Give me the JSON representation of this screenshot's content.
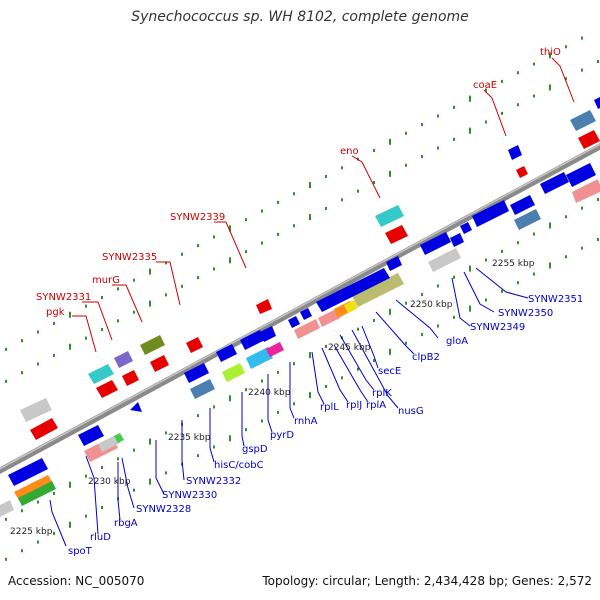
{
  "title": "Synechococcus sp. WH 8102, complete genome",
  "footer": {
    "accession": "Accession: NC_005070",
    "stats": "Topology: circular; Length: 2,434,428 bp; Genes: 2,572"
  },
  "colors": {
    "backbone": "#8c8c8c",
    "tick": "#2f8f2f",
    "top_label": "#cc0000",
    "bottom_label": "#0000cc",
    "scale_text": "#222222"
  },
  "scale_labels": [
    "2225 kbp",
    "2230 kbp",
    "2235 kbp",
    "2240 kbp",
    "2245 kbp",
    "2250 kbp",
    "2255 kbp"
  ],
  "top_labels": [
    "SYNW2331",
    "pgk",
    "murG",
    "SYNW2335",
    "SYNW2339",
    "eno",
    "coaE",
    "thiO"
  ],
  "bottom_labels": [
    "spoT",
    "rluD",
    "rbgA",
    "SYNW2328",
    "SYNW2330",
    "SYNW2332",
    "hisC/cobC",
    "gspD",
    "pyrD",
    "rnhA",
    "rplL",
    "rplJ",
    "rplA",
    "rplK",
    "nusG",
    "secE",
    "clpB2",
    "gloA",
    "SYNW2349",
    "SYNW2350",
    "SYNW2351"
  ]
}
